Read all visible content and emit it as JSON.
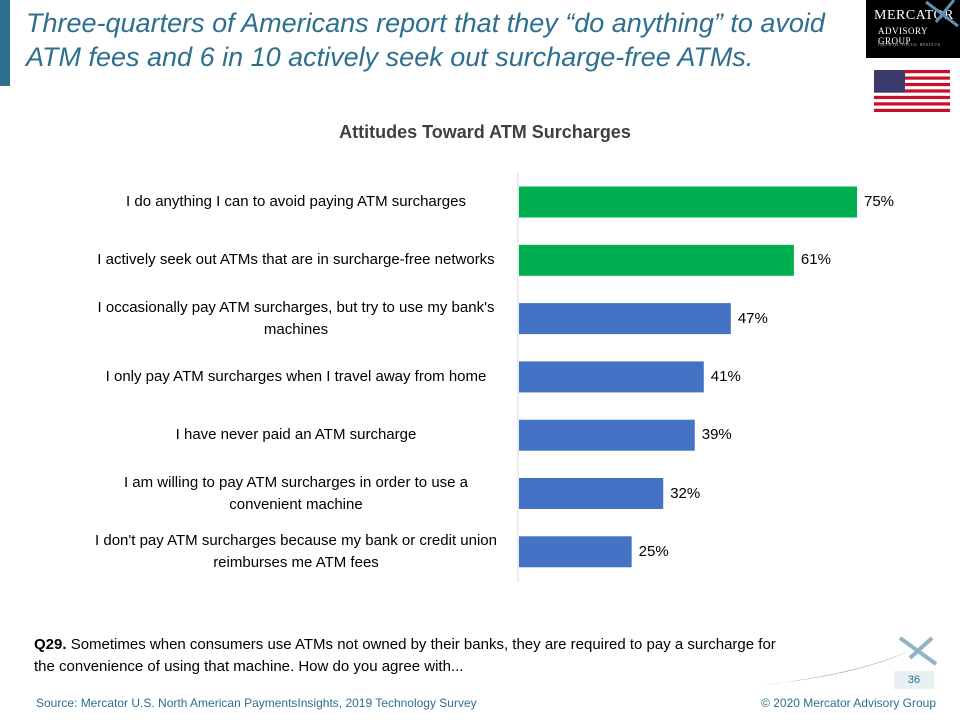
{
  "headline": "Three-quarters of Americans report that they “do anything” to avoid ATM fees and 6 in 10 actively seek out surcharge-free ATMs.",
  "logo": {
    "line1": "MERCATOR",
    "line2": "ADVISORY GROUP",
    "tagline": "GROWTH. FOCUS. RESULTS."
  },
  "flag_icon": "us-flag-icon",
  "colors": {
    "accent": "#2e6f8e",
    "bar_green": "#00b050",
    "bar_blue": "#4472c4"
  },
  "chart_data": {
    "type": "bar",
    "orientation": "horizontal",
    "title": "Attitudes Toward ATM Surcharges",
    "categories": [
      "I do anything I can to avoid paying ATM surcharges",
      "I actively seek out ATMs that are in surcharge-free networks",
      "I occasionally pay ATM surcharges, but try to use my bank's machines",
      "I only pay ATM surcharges when I travel away from home",
      "I have never paid an ATM surcharge",
      "I am willing to pay ATM surcharges in order to use a convenient machine",
      "I don't pay ATM surcharges because my bank or credit union reimburses me ATM fees"
    ],
    "values": [
      75,
      61,
      47,
      41,
      39,
      32,
      25
    ],
    "value_labels": [
      "75%",
      "61%",
      "47%",
      "41%",
      "39%",
      "32%",
      "25%"
    ],
    "bar_colors": [
      "#00b050",
      "#00b050",
      "#4472c4",
      "#4472c4",
      "#4472c4",
      "#4472c4",
      "#4472c4"
    ],
    "xlim": [
      0,
      100
    ],
    "grid": false,
    "legend": "none"
  },
  "question": {
    "number": "Q29.",
    "text": "Sometimes when consumers use ATMs not owned by their banks, they are required to pay a surcharge for the convenience of using that machine. How do you agree with..."
  },
  "page_number": "36",
  "source": "Source: Mercator U.S. North American PaymentsInsights, 2019 Technology Survey",
  "copyright": "© 2020  Mercator Advisory Group"
}
